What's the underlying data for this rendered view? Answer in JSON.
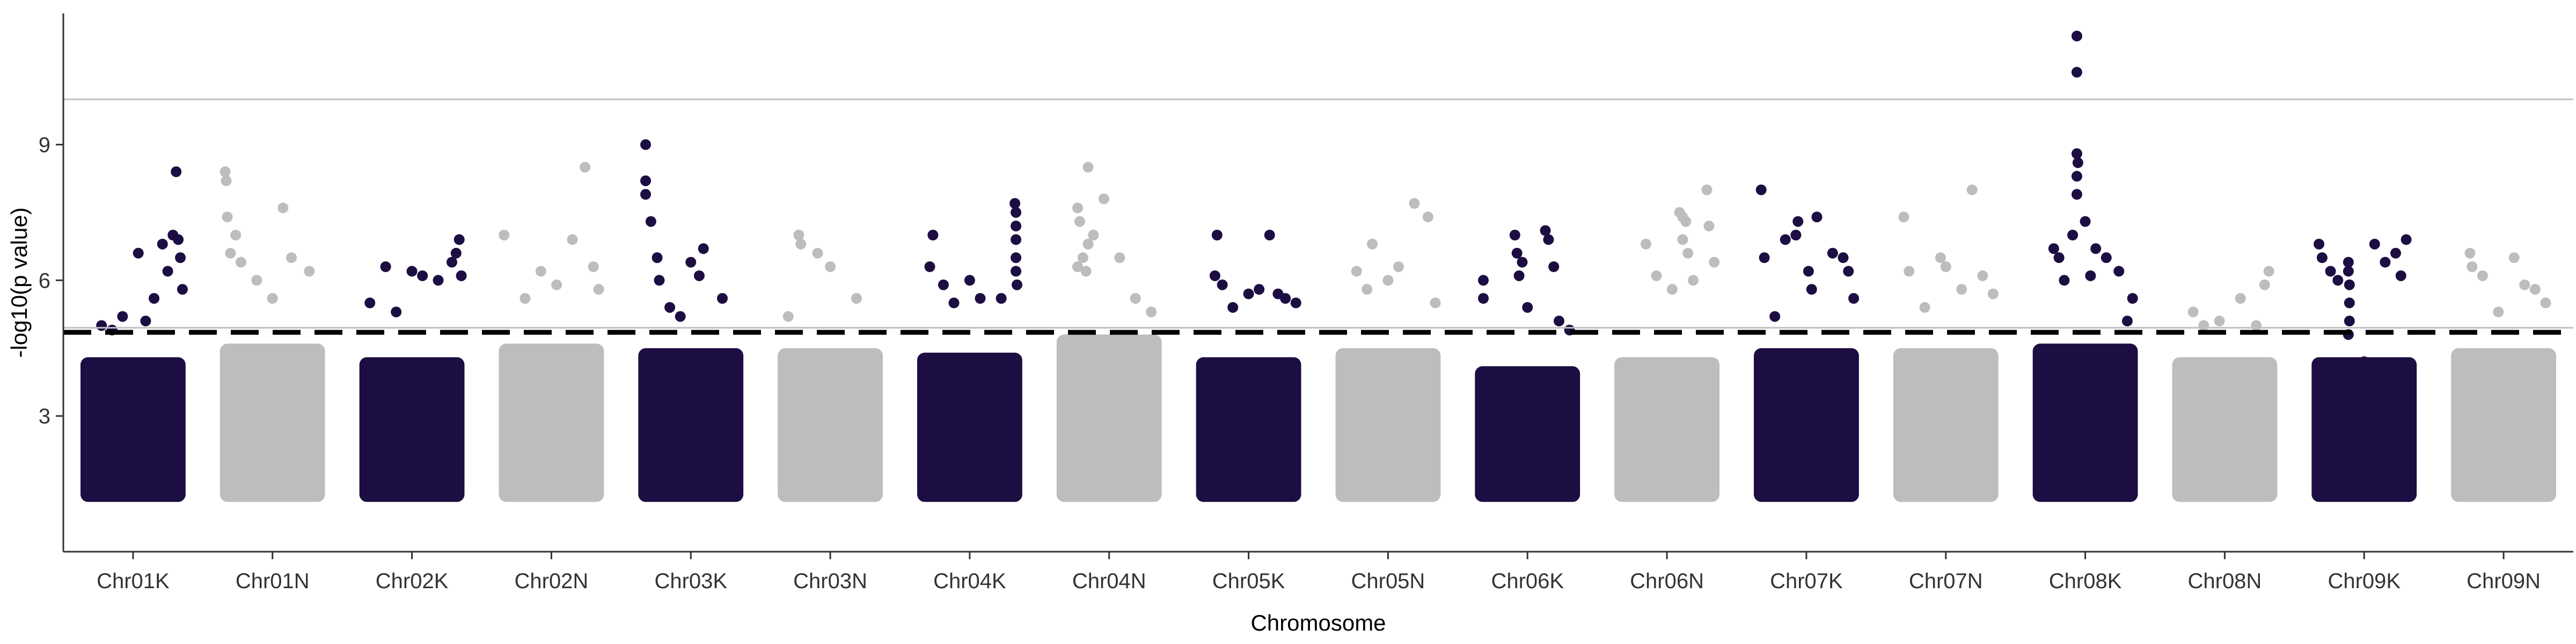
{
  "chart_data": {
    "type": "scatter",
    "title": "",
    "xlabel": "Chromosome",
    "ylabel": "-log10(p value)",
    "ylim": [
      0.0,
      11.9
    ],
    "y_ticks": [
      3,
      6,
      9
    ],
    "grid": false,
    "legend": "none",
    "reference_lines": [
      {
        "name": "suggestive",
        "y": 4.85,
        "style": "dashed",
        "color": "#000000"
      },
      {
        "name": "upper",
        "y": 10.0,
        "style": "solid",
        "color": "#c0c0c0"
      },
      {
        "name": "lower",
        "y": 4.95,
        "style": "solid",
        "color": "#c0c0c0"
      }
    ],
    "colors": {
      "dark": "#1c0e42",
      "light": "#bdbdbd"
    },
    "categories": [
      "Chr01K",
      "Chr01N",
      "Chr02K",
      "Chr02N",
      "Chr03K",
      "Chr03N",
      "Chr04K",
      "Chr04N",
      "Chr05K",
      "Chr05N",
      "Chr06K",
      "Chr06N",
      "Chr07K",
      "Chr07N",
      "Chr08K",
      "Chr08N",
      "Chr09K",
      "Chr09N"
    ],
    "dense_band_min": 1.1,
    "series": [
      {
        "category": "Chr01K",
        "color": "dark",
        "band_top": 4.3,
        "points": [
          [
            0.55,
            6.6
          ],
          [
            0.62,
            5.1
          ],
          [
            0.7,
            5.6
          ],
          [
            0.78,
            6.8
          ],
          [
            0.83,
            6.2
          ],
          [
            0.88,
            7.0
          ],
          [
            0.91,
            8.4
          ],
          [
            0.93,
            6.9
          ],
          [
            0.95,
            6.5
          ],
          [
            0.97,
            5.8
          ],
          [
            0.4,
            5.2
          ],
          [
            0.3,
            4.9
          ],
          [
            0.2,
            5.0
          ]
        ]
      },
      {
        "category": "Chr01N",
        "color": "light",
        "band_top": 4.6,
        "points": [
          [
            0.05,
            8.4
          ],
          [
            0.06,
            8.2
          ],
          [
            0.07,
            7.4
          ],
          [
            0.1,
            6.6
          ],
          [
            0.15,
            7.0
          ],
          [
            0.2,
            6.4
          ],
          [
            0.6,
            7.6
          ],
          [
            0.68,
            6.5
          ],
          [
            0.85,
            6.2
          ],
          [
            0.35,
            6.0
          ],
          [
            0.5,
            5.6
          ]
        ]
      },
      {
        "category": "Chr02K",
        "color": "dark",
        "band_top": 4.3,
        "points": [
          [
            0.25,
            6.3
          ],
          [
            0.5,
            6.2
          ],
          [
            0.6,
            6.1
          ],
          [
            0.75,
            6.0
          ],
          [
            0.88,
            6.4
          ],
          [
            0.92,
            6.6
          ],
          [
            0.95,
            6.9
          ],
          [
            0.97,
            6.1
          ],
          [
            0.35,
            5.3
          ],
          [
            0.1,
            5.5
          ]
        ]
      },
      {
        "category": "Chr02N",
        "color": "light",
        "band_top": 4.6,
        "points": [
          [
            0.05,
            7.0
          ],
          [
            0.4,
            6.2
          ],
          [
            0.7,
            6.9
          ],
          [
            0.82,
            8.5
          ],
          [
            0.9,
            6.3
          ],
          [
            0.95,
            5.8
          ],
          [
            0.25,
            5.6
          ],
          [
            0.55,
            5.9
          ]
        ]
      },
      {
        "category": "Chr03K",
        "color": "dark",
        "band_top": 4.5,
        "points": [
          [
            0.07,
            9.0
          ],
          [
            0.07,
            8.2
          ],
          [
            0.07,
            7.9
          ],
          [
            0.12,
            7.3
          ],
          [
            0.18,
            6.5
          ],
          [
            0.2,
            6.0
          ],
          [
            0.5,
            6.4
          ],
          [
            0.62,
            6.7
          ],
          [
            0.58,
            6.1
          ],
          [
            0.8,
            5.6
          ],
          [
            0.3,
            5.4
          ],
          [
            0.4,
            5.2
          ]
        ]
      },
      {
        "category": "Chr03N",
        "color": "light",
        "band_top": 4.5,
        "points": [
          [
            0.2,
            7.0
          ],
          [
            0.22,
            6.8
          ],
          [
            0.38,
            6.6
          ],
          [
            0.5,
            6.3
          ],
          [
            0.75,
            5.6
          ],
          [
            0.1,
            5.2
          ]
        ]
      },
      {
        "category": "Chr04K",
        "color": "dark",
        "band_top": 4.4,
        "points": [
          [
            0.15,
            7.0
          ],
          [
            0.12,
            6.3
          ],
          [
            0.25,
            5.9
          ],
          [
            0.5,
            6.0
          ],
          [
            0.6,
            5.6
          ],
          [
            0.93,
            7.7
          ],
          [
            0.94,
            7.5
          ],
          [
            0.94,
            7.2
          ],
          [
            0.94,
            6.9
          ],
          [
            0.94,
            6.5
          ],
          [
            0.94,
            6.2
          ],
          [
            0.95,
            5.9
          ],
          [
            0.8,
            5.6
          ],
          [
            0.35,
            5.5
          ]
        ]
      },
      {
        "category": "Chr04N",
        "color": "light",
        "band_top": 4.8,
        "points": [
          [
            0.2,
            7.6
          ],
          [
            0.22,
            7.3
          ],
          [
            0.3,
            8.5
          ],
          [
            0.35,
            7.0
          ],
          [
            0.3,
            6.8
          ],
          [
            0.25,
            6.5
          ],
          [
            0.45,
            7.8
          ],
          [
            0.2,
            6.3
          ],
          [
            0.28,
            6.2
          ],
          [
            0.6,
            6.5
          ],
          [
            0.75,
            5.6
          ],
          [
            0.9,
            5.3
          ]
        ]
      },
      {
        "category": "Chr05K",
        "color": "dark",
        "band_top": 4.3,
        "points": [
          [
            0.2,
            7.0
          ],
          [
            0.18,
            6.1
          ],
          [
            0.25,
            5.9
          ],
          [
            0.7,
            7.0
          ],
          [
            0.5,
            5.7
          ],
          [
            0.6,
            5.8
          ],
          [
            0.78,
            5.7
          ],
          [
            0.85,
            5.6
          ],
          [
            0.95,
            5.5
          ],
          [
            0.35,
            5.4
          ]
        ]
      },
      {
        "category": "Chr05N",
        "color": "light",
        "band_top": 4.5,
        "points": [
          [
            0.35,
            6.8
          ],
          [
            0.5,
            6.0
          ],
          [
            0.75,
            7.7
          ],
          [
            0.88,
            7.4
          ],
          [
            0.6,
            6.3
          ],
          [
            0.2,
            6.2
          ],
          [
            0.3,
            5.8
          ],
          [
            0.95,
            5.5
          ]
        ]
      },
      {
        "category": "Chr06K",
        "color": "dark",
        "band_top": 4.1,
        "points": [
          [
            0.08,
            6.0
          ],
          [
            0.08,
            5.6
          ],
          [
            0.38,
            7.0
          ],
          [
            0.4,
            6.6
          ],
          [
            0.45,
            6.4
          ],
          [
            0.42,
            6.1
          ],
          [
            0.67,
            7.1
          ],
          [
            0.7,
            6.9
          ],
          [
            0.75,
            6.3
          ],
          [
            0.8,
            5.1
          ],
          [
            0.9,
            4.9
          ],
          [
            0.5,
            5.4
          ]
        ]
      },
      {
        "category": "Chr06N",
        "color": "light",
        "band_top": 4.3,
        "points": [
          [
            0.3,
            6.8
          ],
          [
            0.4,
            6.1
          ],
          [
            0.62,
            7.5
          ],
          [
            0.65,
            7.4
          ],
          [
            0.68,
            7.3
          ],
          [
            0.65,
            6.9
          ],
          [
            0.7,
            6.6
          ],
          [
            0.75,
            6.0
          ],
          [
            0.88,
            8.0
          ],
          [
            0.9,
            7.2
          ],
          [
            0.95,
            6.4
          ],
          [
            0.55,
            5.8
          ]
        ]
      },
      {
        "category": "Chr07K",
        "color": "dark",
        "band_top": 4.5,
        "points": [
          [
            0.07,
            8.0
          ],
          [
            0.1,
            6.5
          ],
          [
            0.3,
            6.9
          ],
          [
            0.4,
            7.0
          ],
          [
            0.42,
            7.3
          ],
          [
            0.6,
            7.4
          ],
          [
            0.52,
            6.2
          ],
          [
            0.55,
            5.8
          ],
          [
            0.75,
            6.6
          ],
          [
            0.85,
            6.5
          ],
          [
            0.9,
            6.2
          ],
          [
            0.95,
            5.6
          ],
          [
            0.2,
            5.2
          ]
        ]
      },
      {
        "category": "Chr07N",
        "color": "light",
        "band_top": 4.5,
        "points": [
          [
            0.1,
            7.4
          ],
          [
            0.15,
            6.2
          ],
          [
            0.45,
            6.5
          ],
          [
            0.5,
            6.3
          ],
          [
            0.75,
            8.0
          ],
          [
            0.85,
            6.1
          ],
          [
            0.95,
            5.7
          ],
          [
            0.3,
            5.4
          ],
          [
            0.65,
            5.8
          ]
        ]
      },
      {
        "category": "Chr08K",
        "color": "dark",
        "band_top": 4.6,
        "points": [
          [
            0.42,
            11.4
          ],
          [
            0.42,
            10.6
          ],
          [
            0.42,
            8.8
          ],
          [
            0.43,
            8.6
          ],
          [
            0.42,
            8.3
          ],
          [
            0.42,
            7.9
          ],
          [
            0.5,
            7.3
          ],
          [
            0.38,
            7.0
          ],
          [
            0.2,
            6.7
          ],
          [
            0.25,
            6.5
          ],
          [
            0.6,
            6.7
          ],
          [
            0.7,
            6.5
          ],
          [
            0.82,
            6.2
          ],
          [
            0.95,
            5.6
          ],
          [
            0.9,
            5.1
          ],
          [
            0.3,
            6.0
          ],
          [
            0.55,
            6.1
          ]
        ]
      },
      {
        "category": "Chr08N",
        "color": "light",
        "band_top": 4.3,
        "points": [
          [
            0.2,
            5.3
          ],
          [
            0.3,
            5.0
          ],
          [
            0.45,
            5.1
          ],
          [
            0.65,
            5.6
          ],
          [
            0.8,
            5.0
          ],
          [
            0.88,
            5.9
          ],
          [
            0.92,
            6.2
          ]
        ]
      },
      {
        "category": "Chr09K",
        "color": "dark",
        "band_top": 4.3,
        "points": [
          [
            0.07,
            6.8
          ],
          [
            0.1,
            6.5
          ],
          [
            0.18,
            6.2
          ],
          [
            0.25,
            6.0
          ],
          [
            0.35,
            6.4
          ],
          [
            0.35,
            6.2
          ],
          [
            0.36,
            5.9
          ],
          [
            0.36,
            5.5
          ],
          [
            0.36,
            5.1
          ],
          [
            0.35,
            4.8
          ],
          [
            0.6,
            6.8
          ],
          [
            0.7,
            6.4
          ],
          [
            0.8,
            6.6
          ],
          [
            0.85,
            6.1
          ],
          [
            0.9,
            6.9
          ],
          [
            0.5,
            4.2
          ],
          [
            0.6,
            4.1
          ]
        ]
      },
      {
        "category": "Chr09N",
        "color": "light",
        "band_top": 4.5,
        "points": [
          [
            0.18,
            6.6
          ],
          [
            0.2,
            6.3
          ],
          [
            0.3,
            6.1
          ],
          [
            0.6,
            6.5
          ],
          [
            0.7,
            5.9
          ],
          [
            0.8,
            5.8
          ],
          [
            0.9,
            5.5
          ],
          [
            0.45,
            5.3
          ]
        ]
      }
    ]
  }
}
